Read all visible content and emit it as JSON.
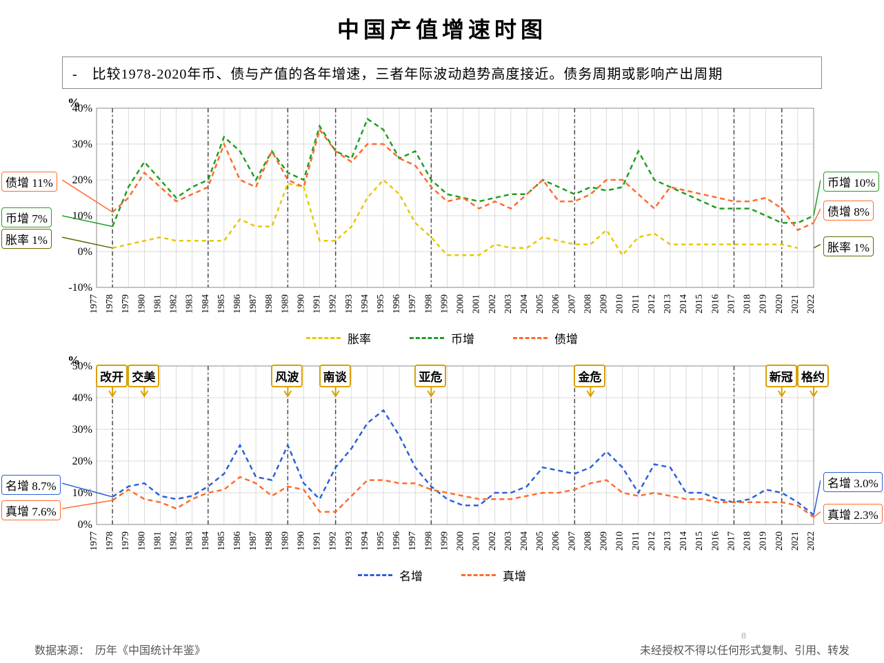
{
  "title": "中国产值增速时图",
  "subtitle": "-　比较1978-2020年币、债与产值的各年增速，三者年际波动趋势高度接近。债务周期或影响产出周期",
  "footer_left": "数据来源：　历年《中国统计年鉴》",
  "footer_right": "未经授权不得以任何形式复制、引用、转发",
  "page_number": "8",
  "years": [
    1977,
    1978,
    1979,
    1980,
    1981,
    1982,
    1983,
    1984,
    1985,
    1986,
    1987,
    1988,
    1989,
    1990,
    1991,
    1992,
    1993,
    1994,
    1995,
    1996,
    1997,
    1998,
    1999,
    2000,
    2001,
    2002,
    2003,
    2004,
    2005,
    2006,
    2007,
    2008,
    2009,
    2010,
    2011,
    2012,
    2013,
    2014,
    2015,
    2016,
    2017,
    2018,
    2019,
    2020,
    2021,
    2022
  ],
  "chart1": {
    "type": "line",
    "unit": "%",
    "ylim": [
      -10,
      40
    ],
    "ytick_step": 10,
    "grid_color": "#cccccc",
    "background_color": "#ffffff",
    "title_fontsize": 17,
    "vbars": [
      1978,
      1984,
      1989,
      1992,
      1998,
      2007,
      2017,
      2020
    ],
    "series": {
      "inflation": {
        "label": "胀率",
        "color": "#e6c800",
        "dash": "6,5",
        "values": [
          null,
          1,
          2,
          3,
          4,
          3,
          3,
          3,
          3,
          9,
          7,
          7,
          19,
          18,
          3,
          3,
          7,
          15,
          20,
          16,
          8,
          4,
          -1,
          -1,
          -1,
          2,
          1,
          1,
          4,
          3,
          2,
          2,
          6,
          -1,
          4,
          5,
          2,
          2,
          2,
          2,
          2,
          2,
          2,
          2,
          1,
          null
        ]
      },
      "money": {
        "label": "币增",
        "color": "#1f9e1f",
        "dash": "7,5",
        "values": [
          null,
          7,
          18,
          25,
          20,
          15,
          18,
          20,
          32,
          28,
          20,
          28,
          22,
          20,
          35,
          28,
          26,
          37,
          34,
          26,
          28,
          20,
          16,
          15,
          14,
          15,
          16,
          16,
          20,
          18,
          16,
          18,
          17,
          18,
          28,
          20,
          18,
          16,
          14,
          12,
          12,
          12,
          10,
          8,
          8,
          10
        ]
      },
      "debt": {
        "label": "债增",
        "color": "#ff6b2d",
        "dash": "7,5",
        "values": [
          null,
          11,
          15,
          22,
          18,
          14,
          16,
          18,
          30,
          20,
          18,
          28,
          20,
          18,
          34,
          28,
          25,
          30,
          30,
          26,
          24,
          18,
          14,
          15,
          12,
          14,
          12,
          16,
          20,
          14,
          14,
          16,
          20,
          20,
          16,
          12,
          18,
          17,
          16,
          15,
          14,
          14,
          15,
          12,
          6,
          8
        ]
      }
    },
    "left_labels": [
      {
        "text": "债增 11%",
        "color": "#ff6b2d",
        "y_value": 20,
        "connector_to_year": 1978,
        "connector_to_value": 11
      },
      {
        "text": "币增 7%",
        "color": "#1f9e1f",
        "y_value": 10,
        "connector_to_year": 1978,
        "connector_to_value": 7
      },
      {
        "text": "胀率 1%",
        "color": "#666600",
        "y_value": 4,
        "connector_to_year": 1978,
        "connector_to_value": 1
      }
    ],
    "right_labels": [
      {
        "text": "币增 10%",
        "color": "#1f9e1f",
        "y_value": 20,
        "connector_to_year": 2022,
        "connector_to_value": 10
      },
      {
        "text": "债增 8%",
        "color": "#ff6b2d",
        "y_value": 12,
        "connector_to_year": 2022,
        "connector_to_value": 8
      },
      {
        "text": "胀率 1%",
        "color": "#666600",
        "y_value": 2,
        "connector_to_year": 2022,
        "connector_to_value": 1
      }
    ]
  },
  "chart2": {
    "type": "line",
    "unit": "%",
    "ylim": [
      0,
      50
    ],
    "ytick_step": 10,
    "grid_color": "#cccccc",
    "background_color": "#ffffff",
    "vbars": [
      1978,
      1984,
      1989,
      1992,
      1998,
      2007,
      2017,
      2020
    ],
    "events": [
      {
        "label": "改开",
        "year": 1978,
        "color": "#d8a000"
      },
      {
        "label": "交美",
        "year": 1980,
        "color": "#d8a000"
      },
      {
        "label": "风波",
        "year": 1989,
        "color": "#d8a000"
      },
      {
        "label": "南谈",
        "year": 1992,
        "color": "#d8a000"
      },
      {
        "label": "亚危",
        "year": 1998,
        "color": "#d8a000"
      },
      {
        "label": "金危",
        "year": 2008,
        "color": "#d8a000"
      },
      {
        "label": "新冠",
        "year": 2020,
        "color": "#d8a000"
      },
      {
        "label": "格约",
        "year": 2022,
        "color": "#d8a000"
      }
    ],
    "series": {
      "nominal": {
        "label": "名增",
        "color": "#2b5fd9",
        "dash": "7,5",
        "values": [
          null,
          8.7,
          12,
          13,
          9,
          8,
          9,
          12,
          16,
          25,
          15,
          14,
          25,
          13,
          8,
          18,
          24,
          32,
          36,
          28,
          18,
          12,
          8,
          6,
          6,
          10,
          10,
          12,
          18,
          17,
          16,
          18,
          23,
          18,
          10,
          19,
          18,
          10,
          10,
          8,
          7,
          8,
          11,
          10,
          7,
          3
        ]
      },
      "real": {
        "label": "真增",
        "color": "#ff6b2d",
        "dash": "7,5",
        "values": [
          null,
          7.6,
          11,
          8,
          7,
          5,
          8,
          10,
          11,
          15,
          13,
          9,
          12,
          11,
          4,
          4,
          9,
          14,
          14,
          13,
          13,
          11,
          10,
          9,
          8,
          8,
          8,
          9,
          10,
          10,
          11,
          13,
          14,
          10,
          9,
          10,
          9,
          8,
          8,
          7,
          7,
          7,
          7,
          7,
          6,
          2.3
        ]
      }
    },
    "left_labels": [
      {
        "text": "名增 8.7%",
        "color": "#2b5fd9",
        "y_value": 13,
        "connector_to_year": 1978,
        "connector_to_value": 8.7
      },
      {
        "text": "真增 7.6%",
        "color": "#ff6b2d",
        "y_value": 5,
        "connector_to_year": 1978,
        "connector_to_value": 7.6
      }
    ],
    "right_labels": [
      {
        "text": "名增 3.0%",
        "color": "#2b5fd9",
        "y_value": 14,
        "connector_to_year": 2022,
        "connector_to_value": 3
      },
      {
        "text": "真增 2.3%",
        "color": "#ff6b2d",
        "y_value": 4,
        "connector_to_year": 2022,
        "connector_to_value": 2.3
      }
    ]
  },
  "legend1": [
    {
      "label": "胀率",
      "color": "#e6c800"
    },
    {
      "label": "币增",
      "color": "#1f9e1f"
    },
    {
      "label": "债增",
      "color": "#ff6b2d"
    }
  ],
  "legend2": [
    {
      "label": "名增",
      "color": "#2b5fd9"
    },
    {
      "label": "真增",
      "color": "#ff6b2d"
    }
  ]
}
